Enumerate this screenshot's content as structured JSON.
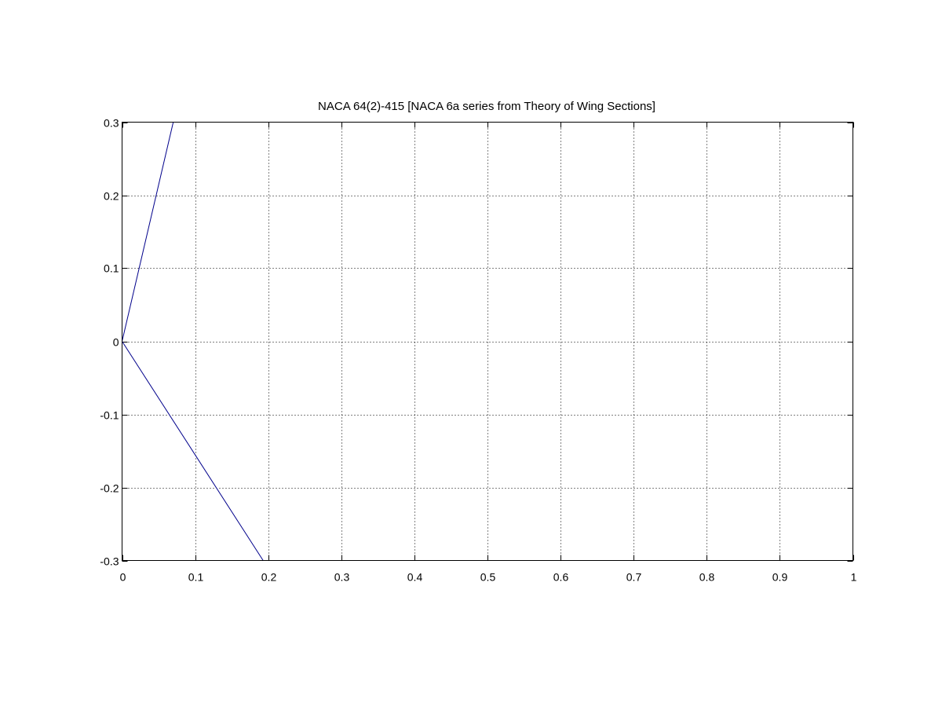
{
  "chart_data": {
    "type": "line",
    "title": "NACA 64(2)-415 [NACA 6a series from Theory of Wing Sections]",
    "xlabel": "",
    "ylabel": "",
    "xlim": [
      0,
      1
    ],
    "ylim": [
      -0.3,
      0.3
    ],
    "grid": true,
    "xticks": [
      0,
      0.1,
      0.2,
      0.3,
      0.4,
      0.5,
      0.6,
      0.7,
      0.8,
      0.9,
      1
    ],
    "xtick_labels": [
      "0",
      "0.1",
      "0.2",
      "0.3",
      "0.4",
      "0.5",
      "0.6",
      "0.7",
      "0.8",
      "0.9",
      "1"
    ],
    "yticks": [
      -0.3,
      -0.2,
      -0.1,
      0,
      0.1,
      0.2,
      0.3
    ],
    "ytick_labels": [
      "-0.3",
      "-0.2",
      "-0.1",
      "0",
      "0.1",
      "0.2",
      "0.3"
    ],
    "line_color": "#00008b",
    "series": [
      {
        "x": [
          0.07,
          0
        ],
        "y": [
          0.3,
          0
        ]
      },
      {
        "x": [
          0,
          0.193
        ],
        "y": [
          0,
          -0.3
        ]
      }
    ]
  }
}
